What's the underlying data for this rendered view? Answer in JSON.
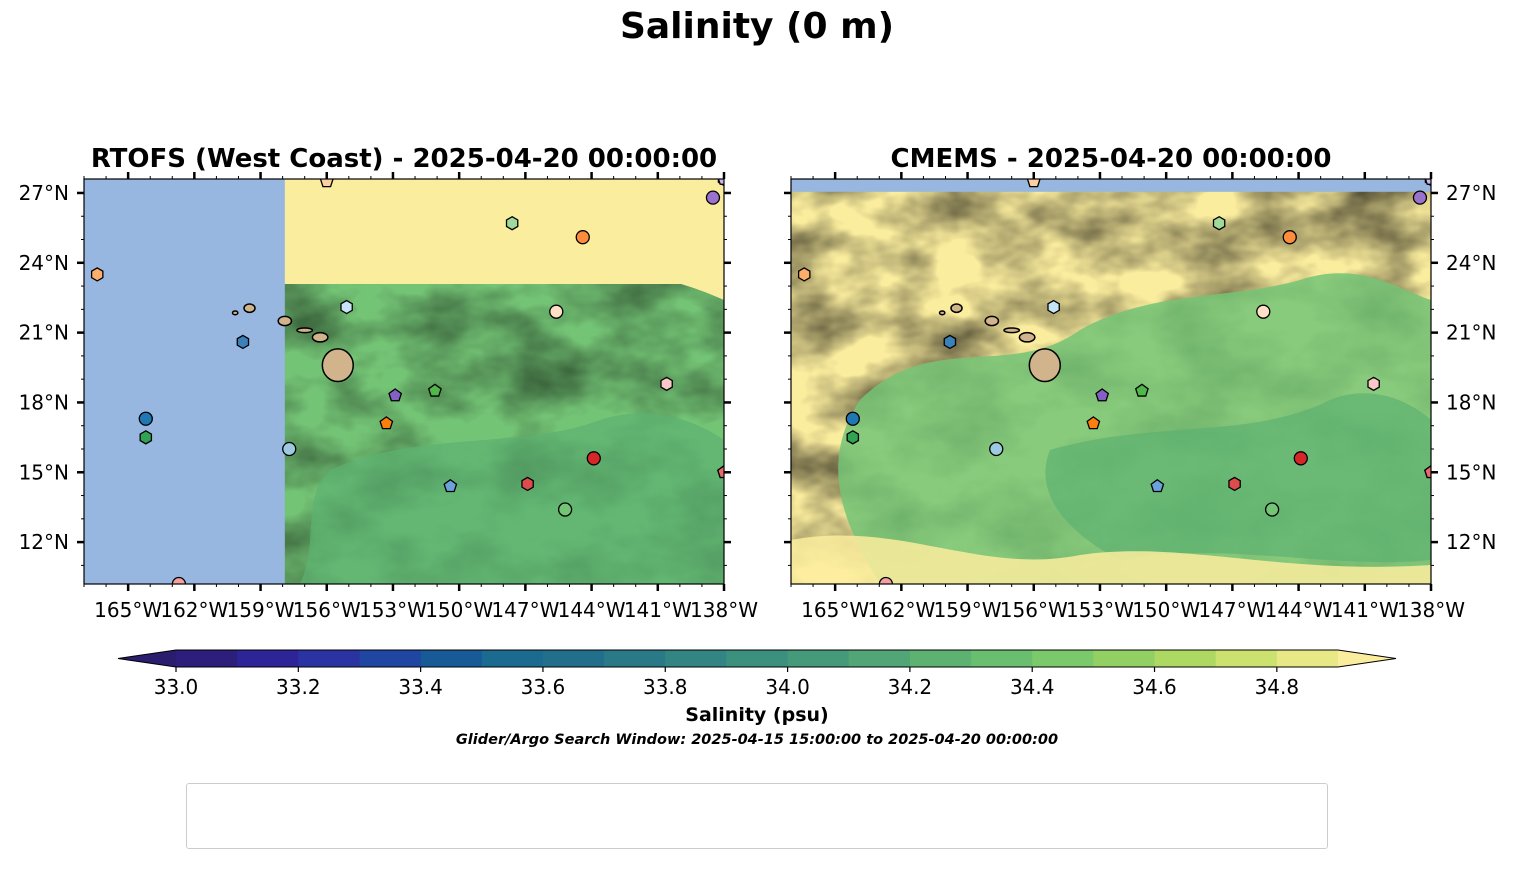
{
  "figure": {
    "title": "Salinity (0 m)",
    "search_window": "Glider/Argo Search Window: 2025-04-15 15:00:00 to 2025-04-20 00:00:00"
  },
  "chart_data": [
    {
      "type": "map-contourf",
      "title": "RTOFS (West Coast) - 2025-04-20 00:00:00",
      "x_ticks": [
        "165°W",
        "162°W",
        "159°W",
        "156°W",
        "153°W",
        "150°W",
        "147°W",
        "144°W",
        "141°W",
        "138°W"
      ],
      "x_tick_values": [
        -165,
        -162,
        -159,
        -156,
        -153,
        -150,
        -147,
        -144,
        -141,
        -138
      ],
      "y_ticks": [
        "12°N",
        "15°N",
        "18°N",
        "21°N",
        "24°N",
        "27°N"
      ],
      "y_tick_values": [
        12,
        15,
        18,
        21,
        24,
        27
      ],
      "xlim": [
        -167,
        -138
      ],
      "ylim": [
        10.2,
        27.6
      ],
      "model_west_edge_lon": -157.9,
      "fill_outside_model": "#97b6e0",
      "y_axis_side": "left"
    },
    {
      "type": "map-contourf",
      "title": "CMEMS - 2025-04-20 00:00:00",
      "x_ticks": [
        "165°W",
        "162°W",
        "159°W",
        "156°W",
        "153°W",
        "150°W",
        "147°W",
        "144°W",
        "141°W",
        "138°W"
      ],
      "x_tick_values": [
        -165,
        -162,
        -159,
        -156,
        -153,
        -150,
        -147,
        -144,
        -141,
        -138
      ],
      "y_ticks": [
        "12°N",
        "15°N",
        "18°N",
        "21°N",
        "24°N",
        "27°N"
      ],
      "y_tick_values": [
        12,
        15,
        18,
        21,
        24,
        27
      ],
      "xlim": [
        -167,
        -138
      ],
      "ylim": [
        10.2,
        27.6
      ],
      "model_north_edge_lat": 27.05,
      "fill_outside_model": "#97b6e0",
      "y_axis_side": "right"
    }
  ],
  "colorbar": {
    "label": "Salinity (psu)",
    "ticks": [
      "33.0",
      "33.2",
      "33.4",
      "33.6",
      "33.8",
      "34.0",
      "34.2",
      "34.4",
      "34.6",
      "34.8"
    ],
    "tick_values": [
      33.0,
      33.2,
      33.4,
      33.6,
      33.8,
      34.0,
      34.2,
      34.4,
      34.6,
      34.8
    ],
    "range": [
      33.0,
      34.9
    ],
    "level_step": 0.1,
    "under_color": "#2a1d6e",
    "over_color": "#fbed9e",
    "colors": [
      "#2c1e7a",
      "#2d2498",
      "#2b33a3",
      "#1f46a0",
      "#185a97",
      "#1b6a90",
      "#226f8b",
      "#2a7987",
      "#338583",
      "#3c907e",
      "#459b79",
      "#51a576",
      "#5db272",
      "#69bf6f",
      "#7bc96a",
      "#93d064",
      "#add861",
      "#cbe26e",
      "#e8e986"
    ]
  },
  "platforms": [
    {
      "id": "2903863",
      "lon": -164.2,
      "lat": 17.3,
      "color": "#1f77b4",
      "marker": "circle"
    },
    {
      "id": "3902559",
      "lon": -159.8,
      "lat": 20.6,
      "color": "#3a80b9",
      "marker": "hexagon"
    },
    {
      "id": "3902561",
      "lon": -150.4,
      "lat": 14.4,
      "color": "#6aa3dc",
      "marker": "pentagon"
    },
    {
      "id": "4902948",
      "lon": -157.7,
      "lat": 16.0,
      "color": "#9ecae1",
      "marker": "circle"
    },
    {
      "id": "4903174",
      "lon": -155.1,
      "lat": 22.1,
      "color": "#c6e4f5",
      "marker": "hexagon"
    },
    {
      "id": "4903175",
      "lon": -153.3,
      "lat": 17.1,
      "color": "#ff7f0e",
      "marker": "pentagon"
    },
    {
      "id": "4903321",
      "lon": -144.4,
      "lat": 25.1,
      "color": "#fd8d3c",
      "marker": "circle"
    },
    {
      "id": "4903322",
      "lon": -166.4,
      "lat": 23.5,
      "color": "#fdae6b",
      "marker": "hexagon"
    },
    {
      "id": "4903503",
      "lon": -156.0,
      "lat": 27.5,
      "color": "#fdd0a2",
      "marker": "pentagon"
    },
    {
      "id": "5905270",
      "lon": -145.6,
      "lat": 21.9,
      "color": "#fde0c5",
      "marker": "circle"
    },
    {
      "id": "5905275",
      "lon": -164.2,
      "lat": 16.5,
      "color": "#31a354",
      "marker": "hexagon"
    },
    {
      "id": "5905732",
      "lon": -151.1,
      "lat": 18.5,
      "color": "#50b848",
      "marker": "pentagon"
    },
    {
      "id": "5906164",
      "lon": -145.2,
      "lat": 13.4,
      "color": "#74c476",
      "marker": "circle"
    },
    {
      "id": "5906369",
      "lon": -147.6,
      "lat": 25.7,
      "color": "#a1d99b",
      "marker": "hexagon"
    },
    {
      "id": "5906399",
      "lon": -138.0,
      "lat": 15.0,
      "color": "#c7e9c0",
      "marker": "pentagon"
    },
    {
      "id": "5906400",
      "lon": -143.9,
      "lat": 15.6,
      "color": "#d62728",
      "marker": "circle"
    },
    {
      "id": "5906471",
      "lon": -146.9,
      "lat": 14.5,
      "color": "#de4b4b",
      "marker": "hexagon"
    },
    {
      "id": "5906514",
      "lon": -138.0,
      "lat": 15.0,
      "color": "#e8686b",
      "marker": "pentagon"
    },
    {
      "id": "5906564",
      "lon": -162.7,
      "lat": 10.2,
      "color": "#f2a0a0",
      "marker": "circle"
    },
    {
      "id": "5906752",
      "lon": -140.6,
      "lat": 18.8,
      "color": "#fbc8c8",
      "marker": "hexagon"
    },
    {
      "id": "5906757",
      "lon": -152.9,
      "lat": 18.3,
      "color": "#8460c4",
      "marker": "pentagon"
    },
    {
      "id": "5906796",
      "lon": -138.5,
      "lat": 26.8,
      "color": "#9a72cc",
      "marker": "circle"
    },
    {
      "id": "5906813",
      "lon": -138.0,
      "lat": 27.6,
      "color": "#b591e0",
      "marker": "hexagon"
    },
    {
      "id": "5906854",
      "lon": -138.0,
      "lat": 27.6,
      "color": "#cdb5f0",
      "marker": "pentagon"
    }
  ],
  "islands": [
    {
      "name": "Hawaii",
      "lon": -155.5,
      "lat": 19.6,
      "rx": 0.7,
      "ry": 0.7,
      "color": "#d2b48c"
    },
    {
      "name": "Maui",
      "lon": -156.3,
      "lat": 20.8,
      "rx": 0.35,
      "ry": 0.2,
      "color": "#d2b48c"
    },
    {
      "name": "Molokai",
      "lon": -157.0,
      "lat": 21.1,
      "rx": 0.35,
      "ry": 0.1,
      "color": "#d2b48c"
    },
    {
      "name": "Oahu",
      "lon": -157.9,
      "lat": 21.5,
      "rx": 0.3,
      "ry": 0.2,
      "color": "#d2b48c"
    },
    {
      "name": "Kauai",
      "lon": -159.5,
      "lat": 22.05,
      "rx": 0.25,
      "ry": 0.18,
      "color": "#d2b48c"
    },
    {
      "name": "Niihau",
      "lon": -160.15,
      "lat": 21.85,
      "rx": 0.12,
      "ry": 0.08,
      "color": "#d2b48c"
    }
  ]
}
